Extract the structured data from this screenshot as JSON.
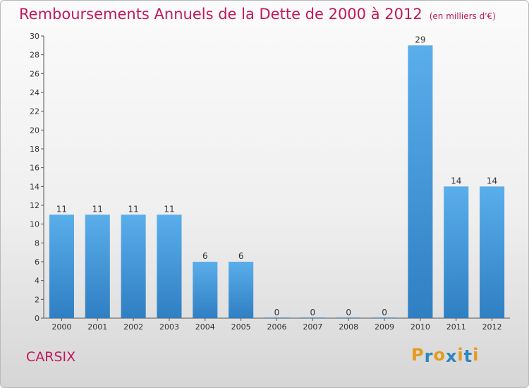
{
  "chart_data": {
    "type": "bar",
    "title": "Remboursements Annuels de la Dette de 2000 à 2012",
    "unit": "(en milliers d'€)",
    "categories": [
      "2000",
      "2001",
      "2002",
      "2003",
      "2004",
      "2005",
      "2006",
      "2007",
      "2008",
      "2009",
      "2010",
      "2011",
      "2012"
    ],
    "values": [
      11,
      11,
      11,
      11,
      6,
      6,
      0,
      0,
      0,
      0,
      29,
      14,
      14
    ],
    "data_labels": [
      "11",
      "11",
      "11",
      "11",
      "6",
      "6",
      "0",
      "0",
      "0",
      "0",
      "29",
      "14",
      "14"
    ],
    "xlabel": "",
    "ylabel": "",
    "ylim": [
      0,
      30
    ],
    "yticks": [
      0,
      2,
      4,
      6,
      8,
      10,
      12,
      14,
      16,
      18,
      20,
      22,
      24,
      26,
      28,
      30
    ],
    "grid": false,
    "bar_color": "#4a9fe0"
  },
  "footer": {
    "commune": "CARSIX",
    "logo_letters": [
      "P",
      "r",
      "o",
      "x",
      "i",
      "t",
      "i"
    ],
    "logo_colors": [
      "#e69a1a",
      "#2e86c1",
      "#e69a1a",
      "#2e86c1",
      "#e69a1a",
      "#2e86c1",
      "#e69a1a"
    ]
  }
}
